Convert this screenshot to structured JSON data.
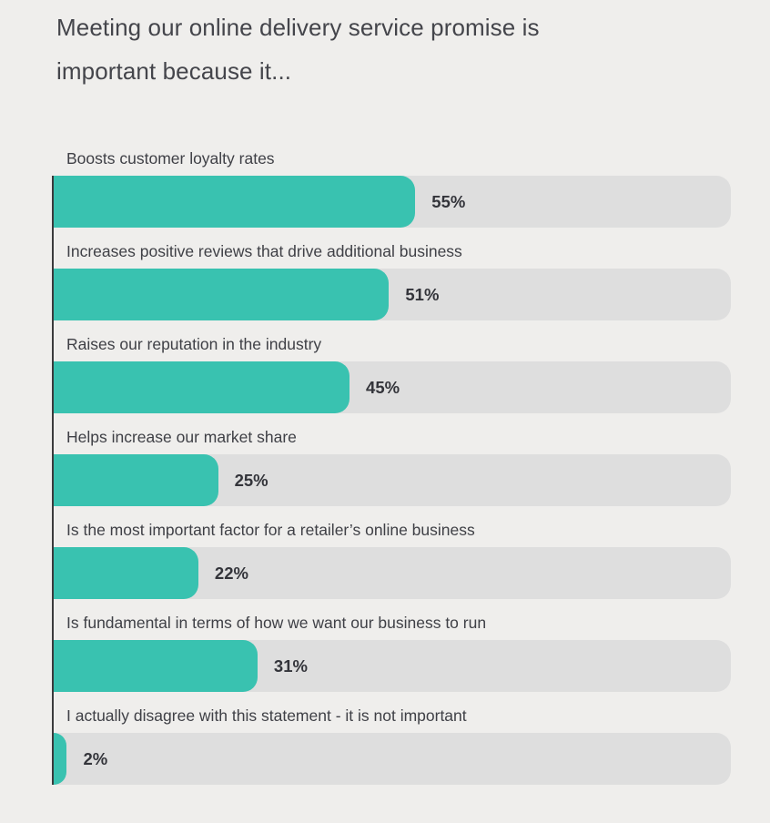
{
  "chart_data": {
    "type": "bar",
    "orientation": "horizontal",
    "title": "Meeting our online delivery service promise is\nimportant because it...",
    "categories": [
      "Boosts customer loyalty rates",
      "Increases positive reviews that drive additional business",
      "Raises our reputation in the industry",
      "Helps increase our market share",
      "Is the most important factor for a retailer’s online business",
      "Is fundamental in terms of how we want our business to run",
      "I actually disagree with this statement - it is not important"
    ],
    "values": [
      55,
      51,
      45,
      25,
      22,
      31,
      2
    ],
    "value_labels": [
      "55%",
      "51%",
      "45%",
      "25%",
      "22%",
      "31%",
      "2%"
    ],
    "xlabel": "",
    "ylabel": "",
    "xlim": [
      0,
      103
    ],
    "grid": false,
    "legend": false,
    "colors": {
      "bar": "#39c2b0",
      "track": "#dedede",
      "background": "#efeeec",
      "axis": "#3a3a3c",
      "title": "#44454b",
      "label": "#3f4046",
      "value": "#33343a"
    }
  }
}
